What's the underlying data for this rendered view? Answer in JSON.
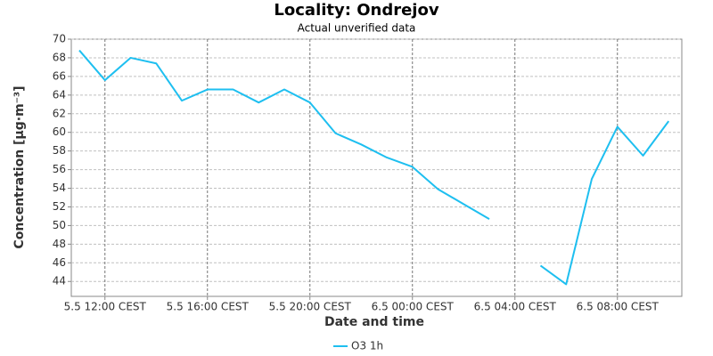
{
  "chart_data": {
    "type": "line",
    "title": "Locality: Ondrejov",
    "subtitle": "Actual unverified data",
    "x_label": "Date and time",
    "y_label": "Concentration [µg·m⁻³]",
    "categories": [
      null,
      "5.5 12:00 CEST",
      null,
      null,
      null,
      "5.5 16:00 CEST",
      null,
      null,
      null,
      "5.5 20:00 CEST",
      null,
      null,
      null,
      "6.5 00:00 CEST",
      null,
      null,
      null,
      "6.5 04:00 CEST",
      null,
      null,
      null,
      "6.5 08:00 CEST",
      null,
      null
    ],
    "series": [
      {
        "name": "O3 1h",
        "color": "#1ebff0",
        "values": [
          68.8,
          65.6,
          68.0,
          67.4,
          63.4,
          64.6,
          64.6,
          63.2,
          64.6,
          63.2,
          59.9,
          58.7,
          57.3,
          56.3,
          53.9,
          52.3,
          50.7,
          null,
          45.7,
          43.7,
          55.0,
          60.6,
          57.5,
          61.2
        ]
      }
    ],
    "ylim": [
      42.4,
      70
    ],
    "yticks": [
      44,
      46,
      48,
      50,
      52,
      54,
      56,
      58,
      60,
      62,
      64,
      66,
      68,
      70
    ],
    "grid": true,
    "legend": "bottom"
  }
}
